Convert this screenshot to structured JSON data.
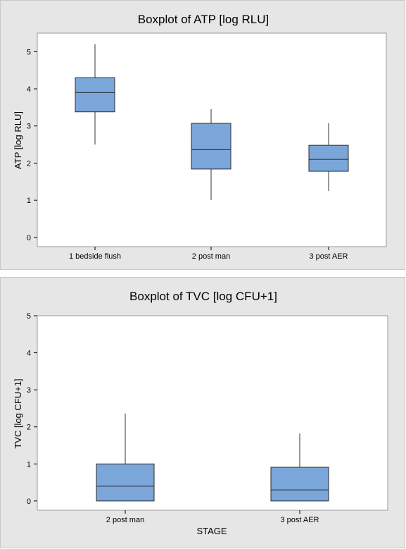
{
  "chart_data": [
    {
      "type": "boxplot",
      "title": "Boxplot of ATP [log RLU]",
      "ylabel": "ATP [log RLU]",
      "xlabel": "",
      "ylim": [
        -0.25,
        5.5
      ],
      "yticks": [
        "0",
        "1",
        "2",
        "3",
        "4",
        "5"
      ],
      "categories": [
        "1 bedside flush",
        "2 post man",
        "3 post AER"
      ],
      "boxes": [
        {
          "min": 2.5,
          "q1": 3.38,
          "median": 3.9,
          "q3": 4.3,
          "max": 5.2
        },
        {
          "min": 1.0,
          "q1": 1.84,
          "median": 2.36,
          "q3": 3.07,
          "max": 3.45
        },
        {
          "min": 1.25,
          "q1": 1.78,
          "median": 2.1,
          "q3": 2.48,
          "max": 3.08
        }
      ],
      "box_color": "#7ba6d9",
      "grid": false
    },
    {
      "type": "boxplot",
      "title": "Boxplot of TVC [log CFU+1]",
      "ylabel": "TVC [log CFU+1]",
      "xlabel": "STAGE",
      "ylim": [
        -0.25,
        5.0
      ],
      "yticks": [
        "0",
        "1",
        "2",
        "3",
        "4",
        "5"
      ],
      "categories": [
        "2 post man",
        "3 post AER"
      ],
      "boxes": [
        {
          "min": 0.0,
          "q1": 0.0,
          "median": 0.4,
          "q3": 1.0,
          "max": 2.36
        },
        {
          "min": 0.0,
          "q1": 0.0,
          "median": 0.3,
          "q3": 0.91,
          "max": 1.82
        }
      ],
      "box_color": "#7ba6d9",
      "grid": false
    }
  ]
}
